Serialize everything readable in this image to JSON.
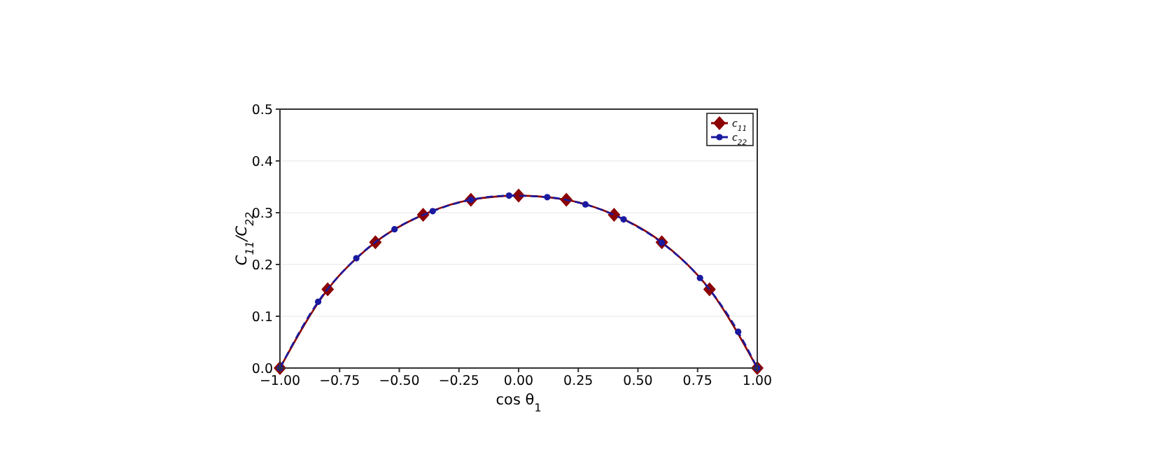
{
  "chart_data": {
    "type": "line",
    "xlabel": "cos θ$_{1}$",
    "ylabel": "C$_{11}$/C$_{22}$",
    "xlim": [
      -1,
      1
    ],
    "ylim": [
      0,
      0.5
    ],
    "xticks": [
      {
        "value": -1,
        "label": "−1.00"
      },
      {
        "value": -0.75,
        "label": "−0.75"
      },
      {
        "value": -0.5,
        "label": "−0.50"
      },
      {
        "value": -0.25,
        "label": "−0.25"
      },
      {
        "value": 0,
        "label": "0.00"
      },
      {
        "value": 0.25,
        "label": "0.25"
      },
      {
        "value": 0.5,
        "label": "0.50"
      },
      {
        "value": 0.75,
        "label": "0.75"
      },
      {
        "value": 1,
        "label": "1.00"
      }
    ],
    "yticks": [
      {
        "value": 0,
        "label": "0.0"
      },
      0.1,
      0.2,
      0.3,
      0.4,
      0.5
    ],
    "grid": "y",
    "legend": "top right",
    "series": [
      {
        "name": "c$_{11}$",
        "color": "#8b0000",
        "marker": "diamond",
        "line_style": "solid",
        "x": [
          -1,
          -0.8,
          -0.6,
          -0.4,
          -0.2,
          0,
          0.2,
          0.4,
          0.6,
          0.8,
          1
        ],
        "values": [
          0,
          0.152,
          0.243,
          0.296,
          0.325,
          0.333,
          0.325,
          0.296,
          0.243,
          0.152,
          0
        ]
      },
      {
        "name": "c$_{22}$",
        "color": "#1a1aa0",
        "marker": "circle",
        "line_style": "dashed",
        "x": [
          -1,
          -0.84,
          -0.68,
          -0.52,
          -0.36,
          -0.2,
          -0.04,
          0.12,
          0.28,
          0.44,
          0.6,
          0.76,
          0.92,
          1
        ],
        "values": [
          0,
          0.128,
          0.212,
          0.268,
          0.303,
          0.325,
          0.333,
          0.33,
          0.316,
          0.287,
          0.242,
          0.174,
          0.07,
          0
        ]
      }
    ]
  }
}
